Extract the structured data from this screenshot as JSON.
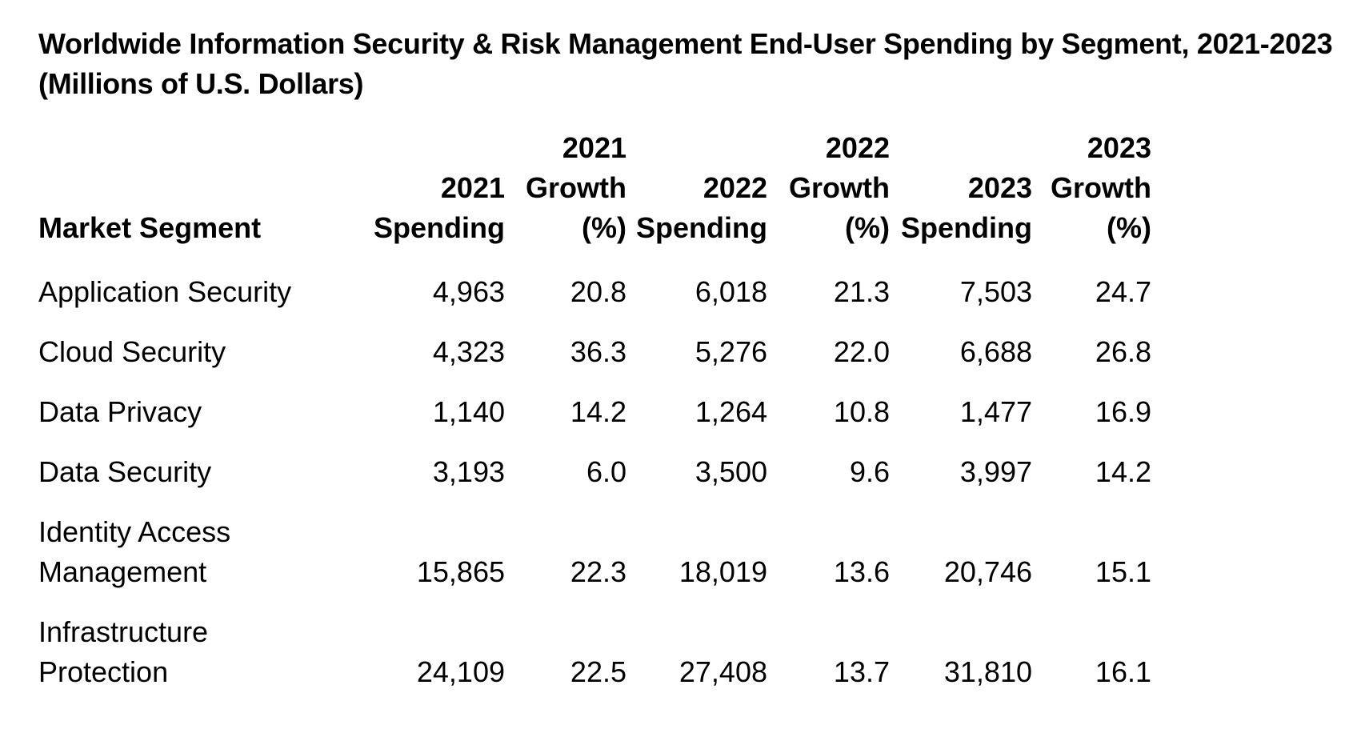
{
  "title": "Worldwide Information Security & Risk Management End-User Spending by Segment, 2021-2023 (Millions of U.S. Dollars)",
  "table": {
    "headers": [
      {
        "key": "segment",
        "lines": [
          "Market Segment"
        ]
      },
      {
        "key": "s2021",
        "lines": [
          "2021",
          "Spending"
        ]
      },
      {
        "key": "g2021",
        "lines": [
          "2021",
          "Growth",
          "(%)"
        ]
      },
      {
        "key": "s2022",
        "lines": [
          "2022",
          "Spending"
        ]
      },
      {
        "key": "g2022",
        "lines": [
          "2022",
          "Growth",
          "(%)"
        ]
      },
      {
        "key": "s2023",
        "lines": [
          "2023",
          "Spending"
        ]
      },
      {
        "key": "g2023",
        "lines": [
          "2023",
          "Growth",
          "(%)"
        ]
      }
    ],
    "rows": [
      {
        "segment": "Application Security",
        "s2021": "4,963",
        "g2021": "20.8",
        "s2022": "6,018",
        "g2022": "21.3",
        "s2023": "7,503",
        "g2023": "24.7"
      },
      {
        "segment": "Cloud Security",
        "s2021": "4,323",
        "g2021": "36.3",
        "s2022": "5,276",
        "g2022": "22.0",
        "s2023": "6,688",
        "g2023": "26.8"
      },
      {
        "segment": "Data Privacy",
        "s2021": "1,140",
        "g2021": "14.2",
        "s2022": "1,264",
        "g2022": "10.8",
        "s2023": "1,477",
        "g2023": "16.9"
      },
      {
        "segment": "Data Security",
        "s2021": "3,193",
        "g2021": "6.0",
        "s2022": "3,500",
        "g2022": "9.6",
        "s2023": "3,997",
        "g2023": "14.2"
      },
      {
        "segment": "Identity Access Management",
        "s2021": "15,865",
        "g2021": "22.3",
        "s2022": "18,019",
        "g2022": "13.6",
        "s2023": "20,746",
        "g2023": "15.1"
      },
      {
        "segment": "Infrastructure Protection",
        "s2021": "24,109",
        "g2021": "22.5",
        "s2022": "27,408",
        "g2022": "13.7",
        "s2023": "31,810",
        "g2023": "16.1"
      }
    ]
  }
}
